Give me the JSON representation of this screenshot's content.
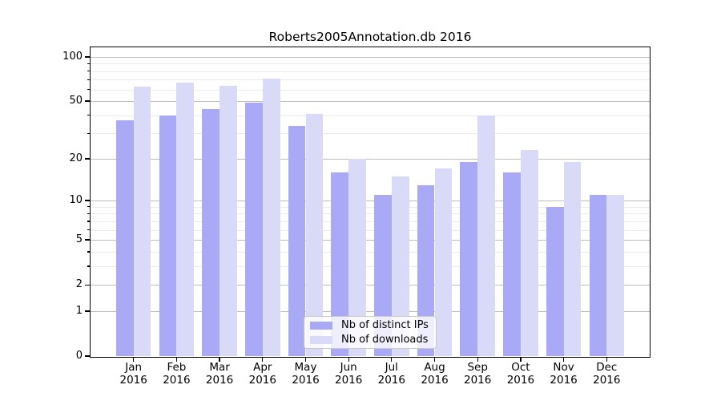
{
  "figure": {
    "background": "#ffffff"
  },
  "chart_data": {
    "type": "bar",
    "title": "Roberts2005Annotation.db 2016",
    "categories": [
      "Jan 2016",
      "Feb 2016",
      "Mar 2016",
      "Apr 2016",
      "May 2016",
      "Jun 2016",
      "Jul 2016",
      "Aug 2016",
      "Sep 2016",
      "Oct 2016",
      "Nov 2016",
      "Dec 2016"
    ],
    "series": [
      {
        "name": "Nb of distinct IPs",
        "color": "#a9a9f6",
        "values": [
          37,
          40,
          44,
          49,
          34,
          16,
          11,
          13,
          19,
          16,
          9,
          11
        ]
      },
      {
        "name": "Nb of downloads",
        "color": "#d9d9f8",
        "values": [
          63,
          67,
          64,
          71,
          41,
          20,
          15,
          17,
          40,
          23,
          19,
          11
        ]
      }
    ],
    "yscale": "log10(value+1)",
    "ylim": [
      0,
      116
    ],
    "yticks": [
      0,
      1,
      2,
      5,
      10,
      20,
      50,
      100
    ],
    "minor_yticks": [
      3,
      4,
      6,
      7,
      8,
      9,
      30,
      40,
      60,
      70,
      80,
      90
    ],
    "xlabel": "",
    "ylabel": "",
    "grid": true,
    "legend_position": "lower center inside",
    "axis_color": "#000000",
    "major_grid_color": "#bdbdbd",
    "minor_grid_color": "#ebebeb"
  }
}
